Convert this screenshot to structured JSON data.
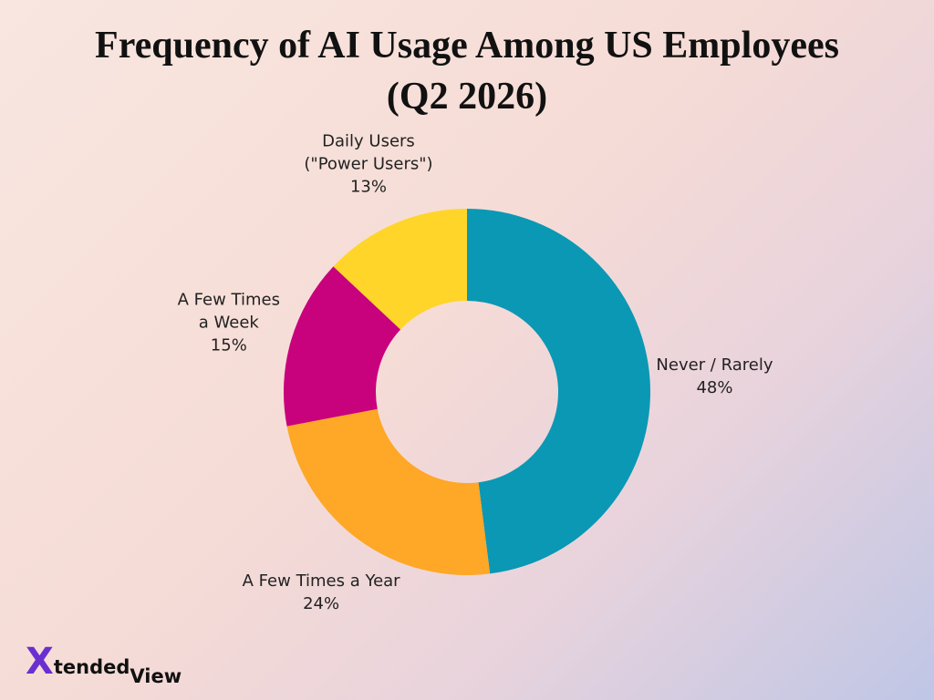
{
  "chart_data": {
    "type": "donut",
    "title": "Frequency of AI Usage Among US Employees\n(Q2 2026)",
    "categories": [
      "Never / Rarely",
      "A Few Times a Year",
      "A Few Times\na Week",
      "Daily Users\n(\"Power Users\")"
    ],
    "values": [
      48,
      24,
      15,
      13
    ],
    "value_labels": [
      "48%",
      "24%",
      "15%",
      "13%"
    ],
    "colors": [
      "#0a98b4",
      "#ffa726",
      "#c8017c",
      "#ffd52a"
    ]
  },
  "logo": {
    "mark": "X",
    "text": "tended",
    "suffix": "View"
  }
}
